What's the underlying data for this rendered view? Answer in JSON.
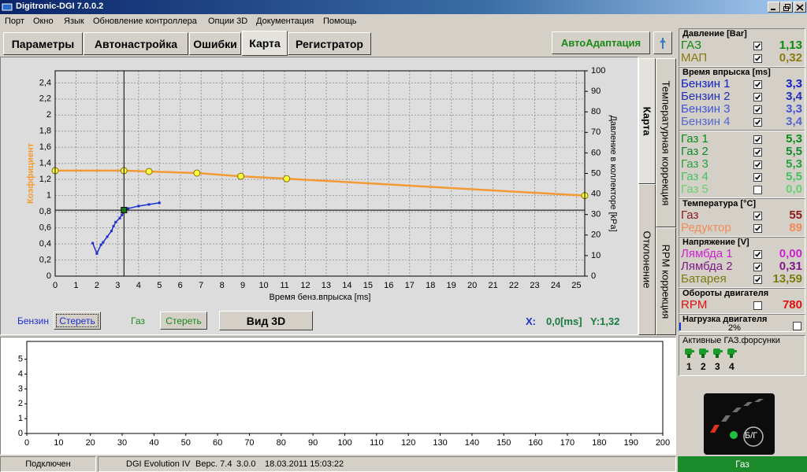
{
  "window": {
    "title": "Digitronic-DGI  7.0.0.2"
  },
  "menu": [
    "Порт",
    "Окно",
    "Язык",
    "Обновление контроллера",
    "Опции 3D",
    "Документация",
    "Помощь"
  ],
  "tabs": [
    "Параметры",
    "Автонастройка",
    "Ошибки",
    "Карта",
    "Регистратор"
  ],
  "auto_button": "АвтоАдаптация",
  "side_tabs": [
    "Карта",
    "Температурная коррекция",
    "Отклонение",
    "RPM коррекция"
  ],
  "chart_data": [
    {
      "type": "line",
      "x_label": "Время бенз.впрыска [ms]",
      "y_label": "Коэффициент",
      "y2_label": "Давление в коллекторе [kPa]",
      "xlim": [
        0,
        25.4
      ],
      "xticks": [
        0,
        1,
        2,
        3,
        4,
        5,
        6,
        7,
        8,
        9,
        10,
        11,
        12,
        13,
        14,
        15,
        16,
        17,
        18,
        19,
        20,
        21,
        22,
        23,
        24,
        25
      ],
      "ylim": [
        0,
        2.55
      ],
      "yticks": [
        0,
        {
          "value": 0.2,
          "label": "0,2"
        },
        {
          "value": 0.4,
          "label": "0,4"
        },
        {
          "value": 0.6,
          "label": "0,6"
        },
        {
          "value": 0.8,
          "label": "0,8"
        },
        1,
        {
          "value": 1.2,
          "label": "1,2"
        },
        {
          "value": 1.4,
          "label": "1,4"
        },
        {
          "value": 1.6,
          "label": "1,6"
        },
        {
          "value": 1.8,
          "label": "1,8"
        },
        2,
        {
          "value": 2.2,
          "label": "2,2"
        },
        {
          "value": 2.4,
          "label": "2,4"
        }
      ],
      "y2lim": [
        0,
        100
      ],
      "y2ticks": [
        0,
        10,
        20,
        30,
        40,
        50,
        60,
        70,
        80,
        90,
        100
      ],
      "grid": true,
      "series": [
        {
          "name": "Газ",
          "color": "#f39a34",
          "marker": "circle",
          "marker_color": "#ffff3c",
          "x": [
            0,
            3.3,
            4.5,
            6.8,
            8.9,
            11.1,
            25.4
          ],
          "values": [
            1.31,
            1.31,
            1.3,
            1.28,
            1.24,
            1.21,
            1.0
          ]
        },
        {
          "name": "Бензин",
          "color": "#1c2fd0",
          "marker": "square",
          "marker_color": "#1c2fd0",
          "x": [
            1.8,
            2.0,
            2.2,
            2.3,
            2.5,
            2.7,
            2.8,
            2.9,
            3.1,
            3.2,
            3.3,
            3.5,
            4.0,
            4.5,
            5.0
          ],
          "values": [
            0.41,
            0.28,
            0.39,
            0.42,
            0.49,
            0.56,
            0.62,
            0.67,
            0.72,
            0.76,
            0.8,
            0.84,
            0.87,
            0.89,
            0.91
          ]
        }
      ],
      "cursor": {
        "x": 3.3,
        "y": 0.82,
        "color": "#1a7a1a"
      }
    },
    {
      "type": "line",
      "xlim": [
        0,
        200
      ],
      "xticks": [
        0,
        10,
        20,
        30,
        40,
        50,
        60,
        70,
        80,
        90,
        100,
        110,
        120,
        130,
        140,
        150,
        160,
        170,
        180,
        190,
        200
      ],
      "ylim": [
        0,
        6.2
      ],
      "yticks": [
        0,
        1,
        2,
        3,
        4,
        5
      ],
      "grid": false
    }
  ],
  "controls": {
    "clear": [
      "Стереть",
      "Стереть"
    ],
    "view3d": "Вид 3D",
    "x_label": "X:",
    "x_value": "0,0[ms]",
    "y_value": "Y:1,32"
  },
  "panel": {
    "groups": [
      {
        "title": "Давление [Bar]",
        "rows": [
          {
            "label": "ГАЗ",
            "value": "1,13",
            "checked": true,
            "color": "#0d8a12"
          },
          {
            "label": "МАП",
            "value": "0,32",
            "checked": true,
            "color": "#8a7a10"
          }
        ]
      },
      {
        "title": "Время впрыска [ms]",
        "rows": [
          {
            "label": "Бензин 1",
            "value": "3,3",
            "checked": true,
            "color": "#1020c8"
          },
          {
            "label": "Бензин 2",
            "value": "3,4",
            "checked": true,
            "color": "#2030b8"
          },
          {
            "label": "Бензин 3",
            "value": "3,3",
            "checked": true,
            "color": "#3f55d8"
          },
          {
            "label": "Бензин 4",
            "value": "3,4",
            "checked": true,
            "color": "#5566cc"
          },
          {
            "label": "Газ 1",
            "value": "5,3",
            "checked": true,
            "color": "#0a8a18"
          },
          {
            "label": "Газ 2",
            "value": "5,5",
            "checked": true,
            "color": "#118a30"
          },
          {
            "label": "Газ 3",
            "value": "5,3",
            "checked": true,
            "color": "#2aa040"
          },
          {
            "label": "Газ 4",
            "value": "5,5",
            "checked": true,
            "color": "#44c060"
          },
          {
            "label": "Газ 5",
            "value": "0,0",
            "checked": false,
            "color": "#66d070"
          }
        ]
      },
      {
        "title": "Температура [°C]",
        "rows": [
          {
            "label": "Газ",
            "value": "55",
            "checked": true,
            "color": "#8a1a1a"
          },
          {
            "label": "Редуктор",
            "value": "89",
            "checked": true,
            "color": "#f08a5a"
          }
        ]
      },
      {
        "title": "Напряжение [V]",
        "rows": [
          {
            "label": "Лямбда 1",
            "value": "0,00",
            "checked": true,
            "color": "#d020d0"
          },
          {
            "label": "Лямбда 2",
            "value": "0,31",
            "checked": true,
            "color": "#801a8a"
          },
          {
            "label": "Батарея",
            "value": "13,59",
            "checked": true,
            "color": "#7a7a10"
          }
        ]
      },
      {
        "title": "Обороты двигателя",
        "rows": [
          {
            "label": "RPM",
            "value": "780",
            "checked": false,
            "color": "#e01010"
          }
        ]
      }
    ],
    "load": {
      "title": "Нагрузка двигателя",
      "value": "2%"
    },
    "injectors": {
      "title": "Активные ГАЗ.форсунки",
      "labels": [
        "1",
        "2",
        "3",
        "4"
      ]
    },
    "indicator": "Б/Г"
  },
  "status": [
    "Подключен",
    "DGI Evolution IV",
    "Верс. 7.4",
    "3.0.0",
    "18.03.2011 15:03:22"
  ],
  "mode": "Газ"
}
